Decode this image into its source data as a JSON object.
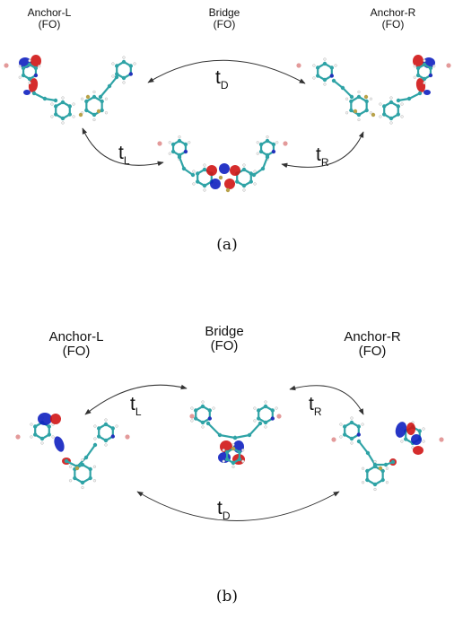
{
  "panel_a": {
    "anchor_left": {
      "line1": "Anchor-L",
      "line2": "(FO)"
    },
    "bridge": {
      "line1": "Bridge",
      "line2": "(FO)"
    },
    "anchor_right": {
      "line1": "Anchor-R",
      "line2": "(FO)"
    },
    "t_left": {
      "symbol": "t",
      "sub": "L"
    },
    "t_right": {
      "symbol": "t",
      "sub": "R"
    },
    "t_direct": {
      "symbol": "t",
      "sub": "D"
    },
    "caption": "(a)"
  },
  "panel_b": {
    "anchor_left": {
      "line1": "Anchor-L",
      "line2": "(FO)"
    },
    "bridge": {
      "line1": "Bridge",
      "line2": "(FO)"
    },
    "anchor_right": {
      "line1": "Anchor-R",
      "line2": "(FO)"
    },
    "t_left": {
      "symbol": "t",
      "sub": "L"
    },
    "t_right": {
      "symbol": "t",
      "sub": "R"
    },
    "t_direct": {
      "symbol": "t",
      "sub": "D"
    },
    "caption": "(b)"
  },
  "colors": {
    "carbon": "#2fa3a6",
    "hydrogen": "#f2f2f2",
    "nitrogen": "#2233bb",
    "gold": "#b8a24a",
    "orbital_red": "#d01515",
    "orbital_blue": "#1020c0",
    "terminal_atom": "#e39a9a",
    "arrow": "#333333"
  }
}
